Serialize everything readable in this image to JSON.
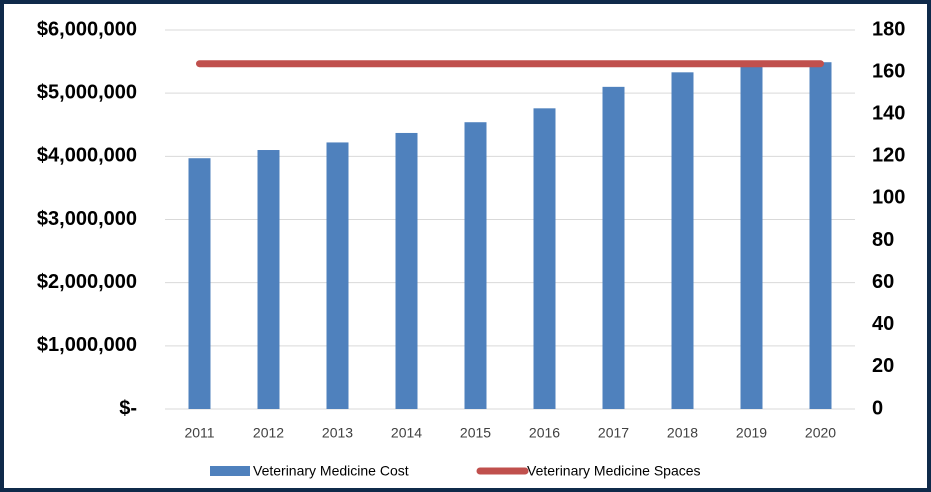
{
  "chart_data": {
    "type": "bar",
    "categories": [
      "2011",
      "2012",
      "2013",
      "2014",
      "2015",
      "2016",
      "2017",
      "2018",
      "2019",
      "2020"
    ],
    "series": [
      {
        "name": "Veterinary Medicine Cost",
        "type": "bar",
        "color": "#4f81bd",
        "values": [
          3970000,
          4100000,
          4220000,
          4370000,
          4540000,
          4760000,
          5100000,
          5330000,
          5460000,
          5490000
        ]
      },
      {
        "name": "Veterinary Medicine Spaces",
        "type": "line",
        "axis": "y2",
        "color": "#c0504d",
        "values": [
          164,
          164,
          164,
          164,
          164,
          164,
          164,
          164,
          164,
          164
        ]
      }
    ],
    "ylim": [
      0,
      6000000
    ],
    "yticks": [
      {
        "value": 0,
        "label": "$-"
      },
      {
        "value": 1000000,
        "label": "$1,000,000"
      },
      {
        "value": 2000000,
        "label": "$2,000,000"
      },
      {
        "value": 3000000,
        "label": "$3,000,000"
      },
      {
        "value": 4000000,
        "label": "$4,000,000"
      },
      {
        "value": 5000000,
        "label": "$5,000,000"
      },
      {
        "value": 6000000,
        "label": "$6,000,000"
      }
    ],
    "y2lim": [
      0,
      180
    ],
    "y2ticks": [
      0,
      20,
      40,
      60,
      80,
      100,
      120,
      140,
      160,
      180
    ],
    "grid": true,
    "legend": "bottom"
  }
}
